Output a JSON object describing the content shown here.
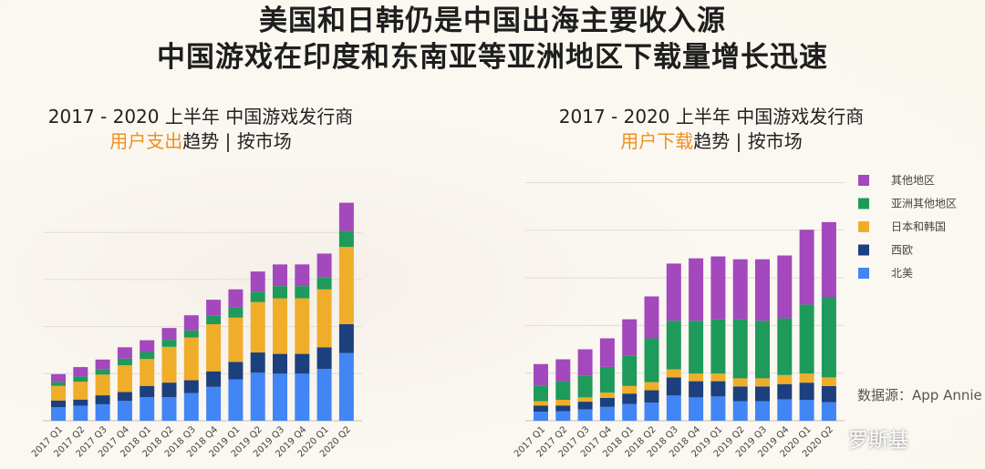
{
  "headline": [
    "美国和日韩仍是中国出海主要收入源",
    "中国游戏在印度和东南亚等亚洲地区下载量增长迅速"
  ],
  "source": "数据源：App Annie",
  "watermark": "罗斯基",
  "colors": {
    "北美": "#4285f4",
    "西欧": "#1c3f7e",
    "日本和韩国": "#f0ad2a",
    "亚洲其他地区": "#1e9a5a",
    "其他地区": "#a348bd",
    "highlight": "#ef8f1e"
  },
  "chart_data": [
    {
      "type": "bar",
      "stacked": true,
      "title_line1": "2017 - 2020 上半年 中国游戏发行商",
      "title_highlight": "用户支出",
      "title_rest": "趋势 | 按市场",
      "categories": [
        "2017 Q1",
        "2017 Q2",
        "2017 Q3",
        "2017 Q4",
        "2018 Q1",
        "2018 Q2",
        "2018 Q3",
        "2018 Q4",
        "2019 Q1",
        "2019 Q2",
        "2019 Q3",
        "2019 Q4",
        "2020 Q1",
        "2020 Q2"
      ],
      "y_unit": "gridline intervals (no axis values printed)",
      "ylim": [
        0,
        4.7
      ],
      "grid": true,
      "series": [
        {
          "name": "北美",
          "values": [
            0.29,
            0.32,
            0.35,
            0.42,
            0.5,
            0.5,
            0.59,
            0.72,
            0.88,
            1.02,
            1.0,
            1.0,
            1.1,
            1.44
          ]
        },
        {
          "name": "西欧",
          "values": [
            0.14,
            0.13,
            0.19,
            0.19,
            0.24,
            0.31,
            0.27,
            0.33,
            0.37,
            0.43,
            0.42,
            0.42,
            0.46,
            0.61
          ]
        },
        {
          "name": "日本和韩国",
          "values": [
            0.31,
            0.38,
            0.44,
            0.57,
            0.57,
            0.76,
            0.91,
            1.0,
            0.94,
            1.07,
            1.18,
            1.18,
            1.23,
            1.64
          ]
        },
        {
          "name": "亚洲其他地区",
          "values": [
            0.08,
            0.11,
            0.11,
            0.14,
            0.15,
            0.15,
            0.15,
            0.18,
            0.22,
            0.22,
            0.26,
            0.26,
            0.26,
            0.34
          ]
        },
        {
          "name": "其他地区",
          "values": [
            0.17,
            0.2,
            0.21,
            0.24,
            0.25,
            0.25,
            0.32,
            0.34,
            0.38,
            0.43,
            0.46,
            0.46,
            0.5,
            0.6
          ]
        }
      ]
    },
    {
      "type": "bar",
      "stacked": true,
      "title_line1": "2017 - 2020 上半年 中国游戏发行商",
      "title_highlight": "用户下载",
      "title_rest": "趋势 | 按市场",
      "categories": [
        "2017 Q1",
        "2017 Q2",
        "2017 Q3",
        "2017 Q4",
        "2018 Q1",
        "2018 Q2",
        "2018 Q3",
        "2018 Q4",
        "2019 Q1",
        "2019 Q2",
        "2019 Q3",
        "2019 Q4",
        "2020 Q1",
        "2020 Q2"
      ],
      "y_unit": "gridline intervals (no axis values printed)",
      "ylim": [
        0,
        5
      ],
      "grid": true,
      "legend": "right",
      "series": [
        {
          "name": "北美",
          "values": [
            0.19,
            0.2,
            0.24,
            0.29,
            0.35,
            0.38,
            0.53,
            0.49,
            0.51,
            0.41,
            0.41,
            0.45,
            0.44,
            0.39
          ]
        },
        {
          "name": "西欧",
          "values": [
            0.13,
            0.12,
            0.16,
            0.19,
            0.22,
            0.26,
            0.38,
            0.34,
            0.32,
            0.31,
            0.31,
            0.32,
            0.36,
            0.34
          ]
        },
        {
          "name": "日本和韩国",
          "values": [
            0.09,
            0.12,
            0.09,
            0.11,
            0.16,
            0.17,
            0.17,
            0.16,
            0.16,
            0.17,
            0.17,
            0.19,
            0.19,
            0.18
          ]
        },
        {
          "name": "亚洲其他地区",
          "values": [
            0.32,
            0.39,
            0.46,
            0.54,
            0.63,
            0.92,
            1.02,
            1.11,
            1.14,
            1.24,
            1.21,
            1.19,
            1.45,
            1.69
          ]
        },
        {
          "name": "其他地区",
          "values": [
            0.46,
            0.46,
            0.55,
            0.6,
            0.77,
            0.88,
            1.2,
            1.31,
            1.32,
            1.26,
            1.29,
            1.32,
            1.57,
            1.57
          ]
        }
      ]
    }
  ]
}
